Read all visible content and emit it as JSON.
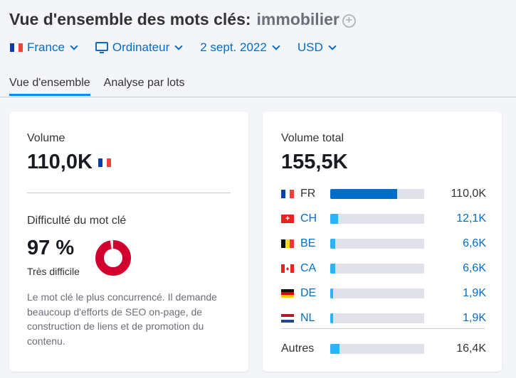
{
  "header": {
    "title": "Vue d'ensemble des mots clés:",
    "keyword": "immobilier",
    "add_icon": "plus-circle-icon"
  },
  "filters": [
    {
      "label": "France",
      "icon": "flag-fr"
    },
    {
      "label": "Ordinateur",
      "icon": "desktop-icon"
    },
    {
      "label": "2 sept. 2022"
    },
    {
      "label": "USD"
    }
  ],
  "tabs": [
    {
      "label": "Vue d'ensemble",
      "active": true
    },
    {
      "label": "Analyse par lots",
      "active": false
    }
  ],
  "volume_card": {
    "volume_label": "Volume",
    "volume_value": "110,0K",
    "difficulty_label": "Difficulté du mot clé",
    "difficulty_value": "97 %",
    "difficulty_percent": 97,
    "difficulty_level": "Très difficile",
    "difficulty_color": "#d1002f",
    "description": "Le mot clé le plus concurrencé. Il demande beaucoup d'efforts de SEO on-page, de construction de liens et de promotion du contenu."
  },
  "total_card": {
    "label": "Volume total",
    "value": "155,5K",
    "countries": [
      {
        "code": "FR",
        "value": "110,0K",
        "fraction": 0.71
      },
      {
        "code": "CH",
        "value": "12,1K",
        "fraction": 0.08
      },
      {
        "code": "BE",
        "value": "6,6K",
        "fraction": 0.05
      },
      {
        "code": "CA",
        "value": "6,6K",
        "fraction": 0.05
      },
      {
        "code": "DE",
        "value": "1,9K",
        "fraction": 0.03
      },
      {
        "code": "NL",
        "value": "1,9K",
        "fraction": 0.03
      }
    ],
    "others": {
      "label": "Autres",
      "value": "16,4K",
      "fraction": 0.1
    }
  },
  "colors": {
    "link": "#006dca",
    "bar_primary": "#006dca",
    "bar_secondary": "#2bb3ff",
    "tab_active": "#008ff8"
  }
}
